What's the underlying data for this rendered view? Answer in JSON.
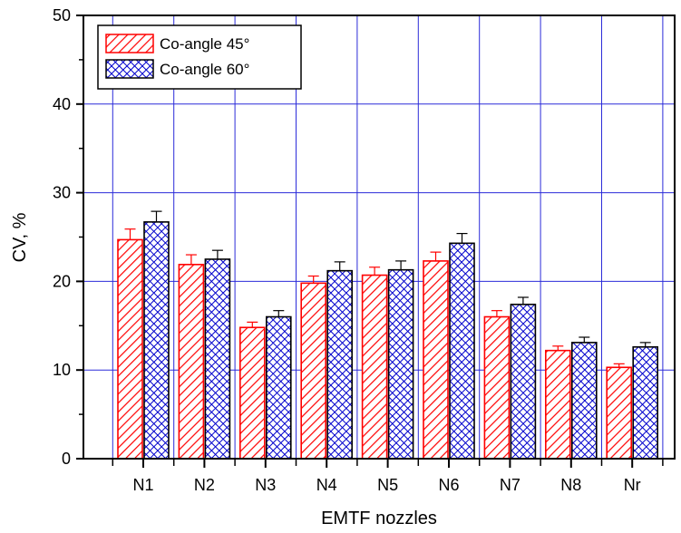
{
  "chart_data": {
    "type": "bar",
    "xlabel": "EMTF nozzles",
    "ylabel": "CV, %",
    "ylim": [
      0,
      50
    ],
    "yticks": [
      "0",
      "10",
      "20",
      "30",
      "40",
      "50"
    ],
    "categories": [
      "N1",
      "N2",
      "N3",
      "N4",
      "N5",
      "N6",
      "N7",
      "N8",
      "Nr"
    ],
    "series": [
      {
        "name": "Co-angle 45°",
        "values": [
          24.7,
          21.9,
          14.8,
          19.8,
          20.7,
          22.3,
          16.0,
          12.2,
          10.3
        ],
        "errors": [
          1.2,
          1.1,
          0.6,
          0.8,
          0.9,
          1.0,
          0.7,
          0.5,
          0.4
        ],
        "color": "#ff0000",
        "pattern": "diagonal-hatch"
      },
      {
        "name": "Co-angle 60°",
        "values": [
          26.7,
          22.5,
          16.0,
          21.2,
          21.3,
          24.3,
          17.4,
          13.1,
          12.6
        ],
        "errors": [
          1.2,
          1.0,
          0.7,
          1.0,
          1.0,
          1.1,
          0.8,
          0.6,
          0.5
        ],
        "color": "#0000cc",
        "pattern": "crosshatch"
      }
    ],
    "grid": true,
    "grid_color": "#2b2bd9",
    "legend_position": "top-left"
  }
}
